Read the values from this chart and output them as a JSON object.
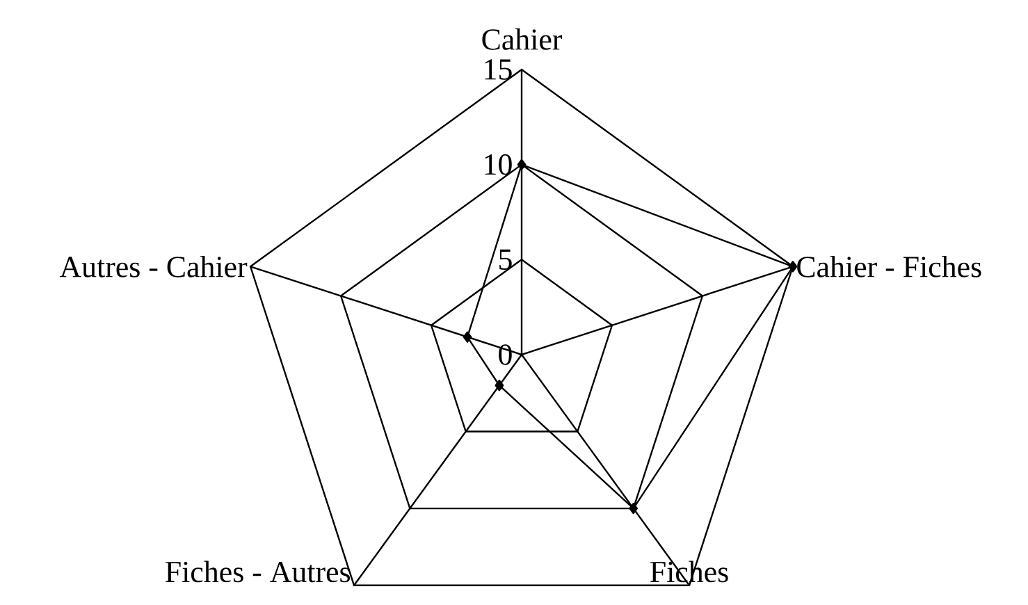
{
  "chart_data": {
    "type": "radar",
    "categories": [
      "Cahier",
      "Cahier - Fiches",
      "Fiches",
      "Fiches - Autres",
      "Autres - Cahier"
    ],
    "series": [
      {
        "color": "#000000",
        "values": [
          10,
          15,
          10,
          2,
          3
        ]
      }
    ],
    "ylim": [
      0,
      15
    ],
    "yticks": [
      0,
      5,
      10,
      15
    ],
    "grid": true,
    "marker": "diamond"
  }
}
